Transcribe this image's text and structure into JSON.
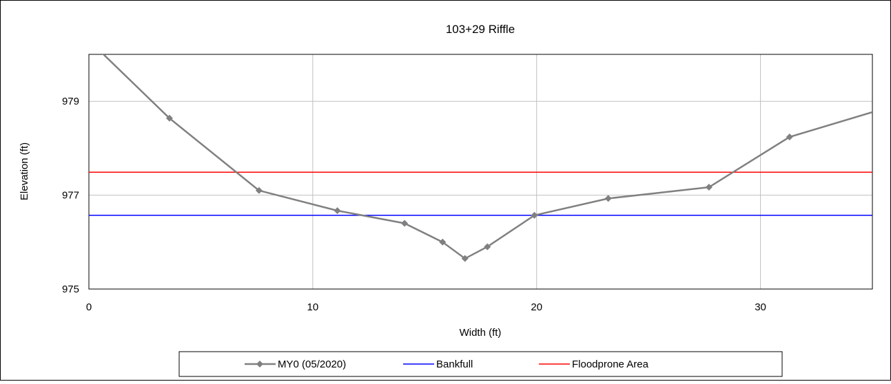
{
  "chart_data": {
    "type": "line",
    "title": "103+29 Riffle",
    "xlabel": "Width (ft)",
    "ylabel": "Elevation (ft)",
    "xlim": [
      0,
      35
    ],
    "ylim": [
      975,
      980
    ],
    "xticks": [
      0,
      10,
      20,
      30
    ],
    "yticks": [
      975,
      977,
      979
    ],
    "grid": true,
    "legend_position": "bottom",
    "series": [
      {
        "name": "MY0 (05/2020)",
        "color": "#808080",
        "marker": "diamond",
        "x": [
          0.0,
          3.6,
          7.6,
          11.1,
          14.1,
          15.8,
          16.8,
          17.8,
          19.9,
          23.2,
          27.7,
          31.3,
          35.5
        ],
        "y": [
          980.3,
          978.64,
          977.1,
          976.67,
          976.4,
          976.0,
          975.65,
          975.9,
          976.57,
          976.93,
          977.17,
          978.24,
          978.84
        ]
      },
      {
        "name": "Bankfull",
        "color": "#0000ff",
        "marker": "none",
        "x": [
          0,
          35
        ],
        "y": [
          976.57,
          976.57
        ]
      },
      {
        "name": "Floodprone Area",
        "color": "#ff0000",
        "marker": "none",
        "x": [
          0,
          35
        ],
        "y": [
          977.49,
          977.49
        ]
      }
    ]
  }
}
